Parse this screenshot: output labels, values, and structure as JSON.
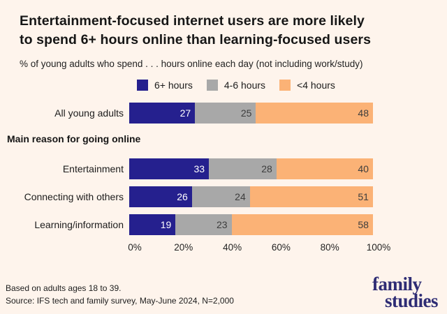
{
  "page": {
    "background": "#FEF4EC",
    "title_line1": "Entertainment-focused internet users are more likely",
    "title_line2": "to spend 6+ hours online than learning-focused users",
    "subtitle": "% of young adults who spend . . . hours online each day (not including work/study)",
    "section_label": "Main reason for going online",
    "footnote_line1": "Based on adults ages 18 to 39.",
    "footnote_line2": "Source: IFS tech and family survey, May-June 2024, N=2,000",
    "logo_line1": "family",
    "logo_line2": "studies"
  },
  "chart_data": {
    "type": "bar",
    "orientation": "horizontal",
    "stacked": true,
    "title": "Entertainment-focused internet users are more likely to spend 6+ hours online than learning-focused users",
    "subtitle": "% of young adults who spend . . . hours online each day (not including work/study)",
    "categories": [
      "All young adults",
      "Entertainment",
      "Connecting with others",
      "Learning/information"
    ],
    "category_group_label": "Main reason for going online",
    "grouped_categories": [
      "Entertainment",
      "Connecting with others",
      "Learning/information"
    ],
    "series": [
      {
        "name": "6+ hours",
        "color": "#25208E",
        "value_color": "#FFFFFF",
        "values": [
          27,
          33,
          26,
          19
        ]
      },
      {
        "name": "4-6 hours",
        "color": "#A8A8A8",
        "value_color": "#3D3D3D",
        "values": [
          25,
          28,
          24,
          23
        ]
      },
      {
        "name": "<4 hours",
        "color": "#FBB276",
        "value_color": "#3D3D3D",
        "values": [
          48,
          40,
          51,
          58
        ]
      }
    ],
    "x_ticks": [
      "0%",
      "20%",
      "40%",
      "60%",
      "80%",
      "100%"
    ],
    "xlim": [
      0,
      100
    ],
    "legend_position": "top",
    "grid": false
  }
}
